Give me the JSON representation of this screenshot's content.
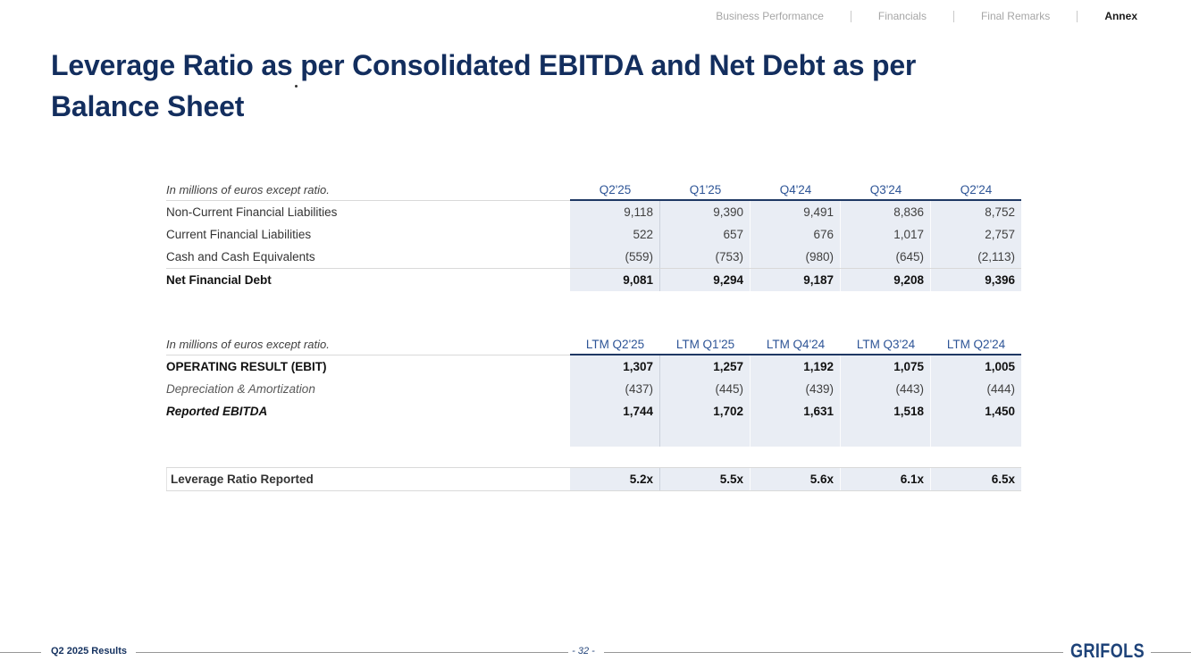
{
  "nav": {
    "items": [
      {
        "label": "Business Performance"
      },
      {
        "label": "Financials"
      },
      {
        "label": "Final Remarks"
      },
      {
        "label": "Annex"
      }
    ]
  },
  "title": {
    "line1": "Leverage Ratio as per Consolidated EBITDA and Net Debt as per",
    "line2": "Balance Sheet"
  },
  "net_debt_table": {
    "note": "In millions of euros except ratio.",
    "columns": [
      "Q2'25",
      "Q1'25",
      "Q4'24",
      "Q3'24",
      "Q2'24"
    ],
    "rows": [
      {
        "label": "Non-Current Financial Liabilities",
        "values": [
          "9,118",
          "9,390",
          "9,491",
          "8,836",
          "8,752"
        ]
      },
      {
        "label": "Current Financial Liabilities",
        "values": [
          "522",
          "657",
          "676",
          "1,017",
          "2,757"
        ]
      },
      {
        "label": "Cash and Cash Equivalents",
        "values": [
          "(559)",
          "(753)",
          "(980)",
          "(645)",
          "(2,113)"
        ]
      },
      {
        "label": "Net Financial Debt",
        "values": [
          "9,081",
          "9,294",
          "9,187",
          "9,208",
          "9,396"
        ]
      }
    ]
  },
  "ebitda_table": {
    "note": "In millions of euros except ratio.",
    "columns": [
      "LTM Q2'25",
      "LTM Q1'25",
      "LTM Q4'24",
      "LTM Q3'24",
      "LTM Q2'24"
    ],
    "rows": [
      {
        "label": "OPERATING RESULT (EBIT)",
        "values": [
          "1,307",
          "1,257",
          "1,192",
          "1,075",
          "1,005"
        ]
      },
      {
        "label": "Depreciation & Amortization",
        "values": [
          "(437)",
          "(445)",
          "(439)",
          "(443)",
          "(444)"
        ]
      },
      {
        "label": "Reported EBITDA",
        "values": [
          "1,744",
          "1,702",
          "1,631",
          "1,518",
          "1,450"
        ]
      }
    ]
  },
  "leverage_row": {
    "label": "Leverage Ratio Reported",
    "values": [
      "5.2x",
      "5.5x",
      "5.6x",
      "6.1x",
      "6.5x"
    ]
  },
  "footer": {
    "left_label": "Q2 2025 Results",
    "page_number": "- 32 -",
    "logo_text": "GRIFOLS"
  },
  "colors": {
    "title_navy": "#132e5e",
    "header_blue": "#2e5597",
    "header_underline": "#1f3864",
    "cell_background": "#e9edf4",
    "logo_navy": "#1e4379",
    "nav_inactive": "#a6a6a6",
    "nav_active": "#1a1a1a"
  }
}
